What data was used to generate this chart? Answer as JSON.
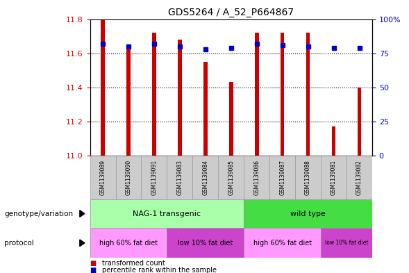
{
  "title": "GDS5264 / A_52_P664867",
  "samples": [
    "GSM1139089",
    "GSM1139090",
    "GSM1139091",
    "GSM1139083",
    "GSM1139084",
    "GSM1139085",
    "GSM1139086",
    "GSM1139087",
    "GSM1139088",
    "GSM1139081",
    "GSM1139082"
  ],
  "transformed_counts": [
    11.8,
    11.63,
    11.72,
    11.68,
    11.55,
    11.43,
    11.72,
    11.72,
    11.72,
    11.17,
    11.4
  ],
  "percentile_ranks": [
    82,
    80,
    82,
    80,
    78,
    79,
    82,
    81,
    80,
    79,
    79
  ],
  "ylim_left": [
    11.0,
    11.8
  ],
  "ylim_right": [
    0,
    100
  ],
  "yticks_left": [
    11.0,
    11.2,
    11.4,
    11.6,
    11.8
  ],
  "yticks_right": [
    0,
    25,
    50,
    75,
    100
  ],
  "bar_color": "#CC0000",
  "dot_color": "#0000CC",
  "background_color": "#ffffff",
  "grid_color": "#000000",
  "genotype_groups": [
    {
      "label": "NAG-1 transgenic",
      "start": 0,
      "end": 6,
      "color": "#AAFFAA"
    },
    {
      "label": "wild type",
      "start": 6,
      "end": 11,
      "color": "#44DD44"
    }
  ],
  "protocol_groups": [
    {
      "label": "high 60% fat diet",
      "start": 0,
      "end": 3,
      "color": "#FF99FF"
    },
    {
      "label": "low 10% fat diet",
      "start": 3,
      "end": 6,
      "color": "#CC44CC"
    },
    {
      "label": "high 60% fat diet",
      "start": 6,
      "end": 9,
      "color": "#FF99FF"
    },
    {
      "label": "low 10% fat diet",
      "start": 9,
      "end": 11,
      "color": "#CC44CC"
    }
  ],
  "legend_items": [
    {
      "label": "transformed count",
      "color": "#CC0000"
    },
    {
      "label": "percentile rank within the sample",
      "color": "#0000CC"
    }
  ],
  "left_label_color": "#CC0000",
  "right_label_color": "#0000CC",
  "genotype_label": "genotype/variation",
  "protocol_label": "protocol",
  "bar_width": 0.15
}
